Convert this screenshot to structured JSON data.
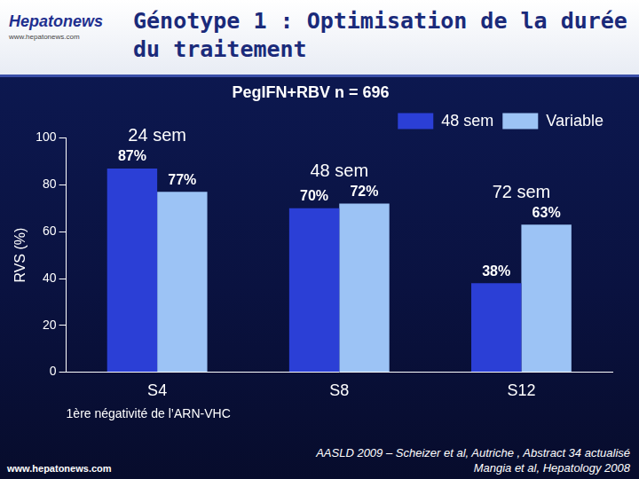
{
  "header": {
    "title": "Génotype 1 : Optimisation de la durée du traitement",
    "logo": "Hepatonews",
    "logo_url": "www.hepatonews.com"
  },
  "chart_data": {
    "type": "bar",
    "subtitle": "PegIFN+RBV n = 696",
    "y_label": "RVS (%)",
    "x_label": "1ère négativité de l’ARN-VHC",
    "categories": [
      "S4",
      "S8",
      "S12"
    ],
    "series": [
      {
        "name": "48 sem",
        "color": "#2b3fd6",
        "values": [
          87,
          70,
          38
        ],
        "value_labels": [
          "87%",
          "70%",
          "38%"
        ]
      },
      {
        "name": "Variable",
        "color": "#9cc3f5",
        "values": [
          77,
          72,
          63
        ],
        "value_labels": [
          "77%",
          "72%",
          "63%"
        ]
      }
    ],
    "annotations": [
      "24 sem",
      "48 sem",
      "72 sem"
    ],
    "ylim": [
      0,
      100
    ],
    "yticks": [
      0,
      20,
      40,
      60,
      80,
      100
    ],
    "grid": false,
    "legend": "top-right",
    "data_labels": true
  },
  "footer": {
    "sources": [
      "AASLD 2009 – Scheizer et al, Autriche , Abstract 34 actualisé",
      "Mangia et al, Hepatology 2008"
    ],
    "website": "www.hepatonews.com"
  }
}
